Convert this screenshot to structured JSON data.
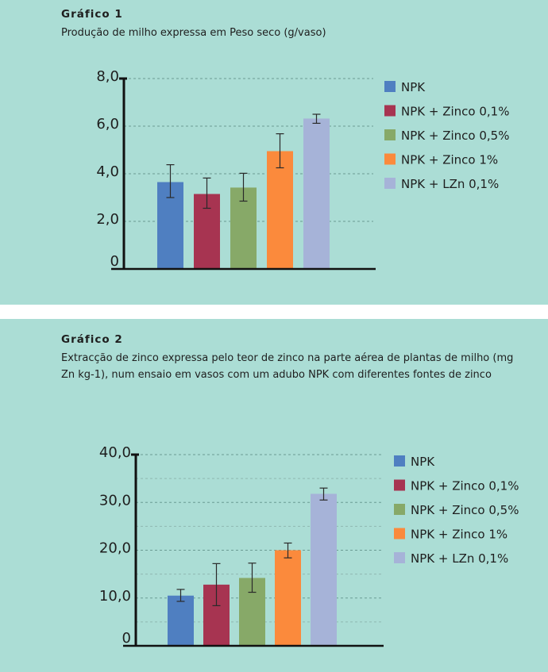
{
  "chart_data": [
    {
      "type": "bar",
      "title": "Gráfico 1",
      "subtitle": "Produção de milho expressa em Peso seco (g/vaso)",
      "categories": [
        "NPK",
        "NPK + Zinco 0,1%",
        "NPK + Zinco 0,5%",
        "NPK + Zinco 1%",
        "NPK + LZn 0,1%"
      ],
      "values": [
        3.65,
        3.15,
        3.42,
        4.95,
        6.32
      ],
      "error_low": [
        3.0,
        2.55,
        2.85,
        4.25,
        6.12
      ],
      "error_high": [
        4.38,
        3.82,
        4.02,
        5.68,
        6.5
      ],
      "colors": [
        "#4f7fc1",
        "#a73451",
        "#87a968",
        "#fb8a3c",
        "#a6b3d8"
      ],
      "ylim": [
        0,
        8
      ],
      "yticks": [
        0,
        2,
        4,
        6,
        8
      ],
      "ytick_labels": [
        "0",
        "2,0",
        "4,0",
        "6,0",
        "8,0"
      ],
      "xlabel": "",
      "ylabel": "",
      "grid": true,
      "legend": "right"
    },
    {
      "type": "bar",
      "title": "Gráfico 2",
      "subtitle": "Extracção de zinco expressa pelo teor de zinco na parte aérea de plantas de milho (mg Zn kg-1), num ensaio em vasos com um adubo NPK com diferentes fontes de zinco",
      "categories": [
        "NPK",
        "NPK + Zinco 0,1%",
        "NPK + Zinco 0,5%",
        "NPK + Zinco 1%",
        "NPK + LZn 0,1%"
      ],
      "values": [
        10.5,
        12.8,
        14.2,
        20.0,
        31.8
      ],
      "error_low": [
        9.3,
        8.4,
        11.2,
        18.4,
        30.5
      ],
      "error_high": [
        11.8,
        17.2,
        17.3,
        21.5,
        33.0
      ],
      "colors": [
        "#4f7fc1",
        "#a73451",
        "#87a968",
        "#fb8a3c",
        "#a6b3d8"
      ],
      "ylim": [
        0,
        40
      ],
      "yticks": [
        0,
        10,
        20,
        30,
        40
      ],
      "ytick_labels": [
        "0",
        "10,0",
        "20,0",
        "30,0",
        "40,0"
      ],
      "minor_grid": [
        5,
        15,
        25,
        35
      ],
      "xlabel": "",
      "ylabel": "",
      "grid": true,
      "legend": "right"
    }
  ]
}
